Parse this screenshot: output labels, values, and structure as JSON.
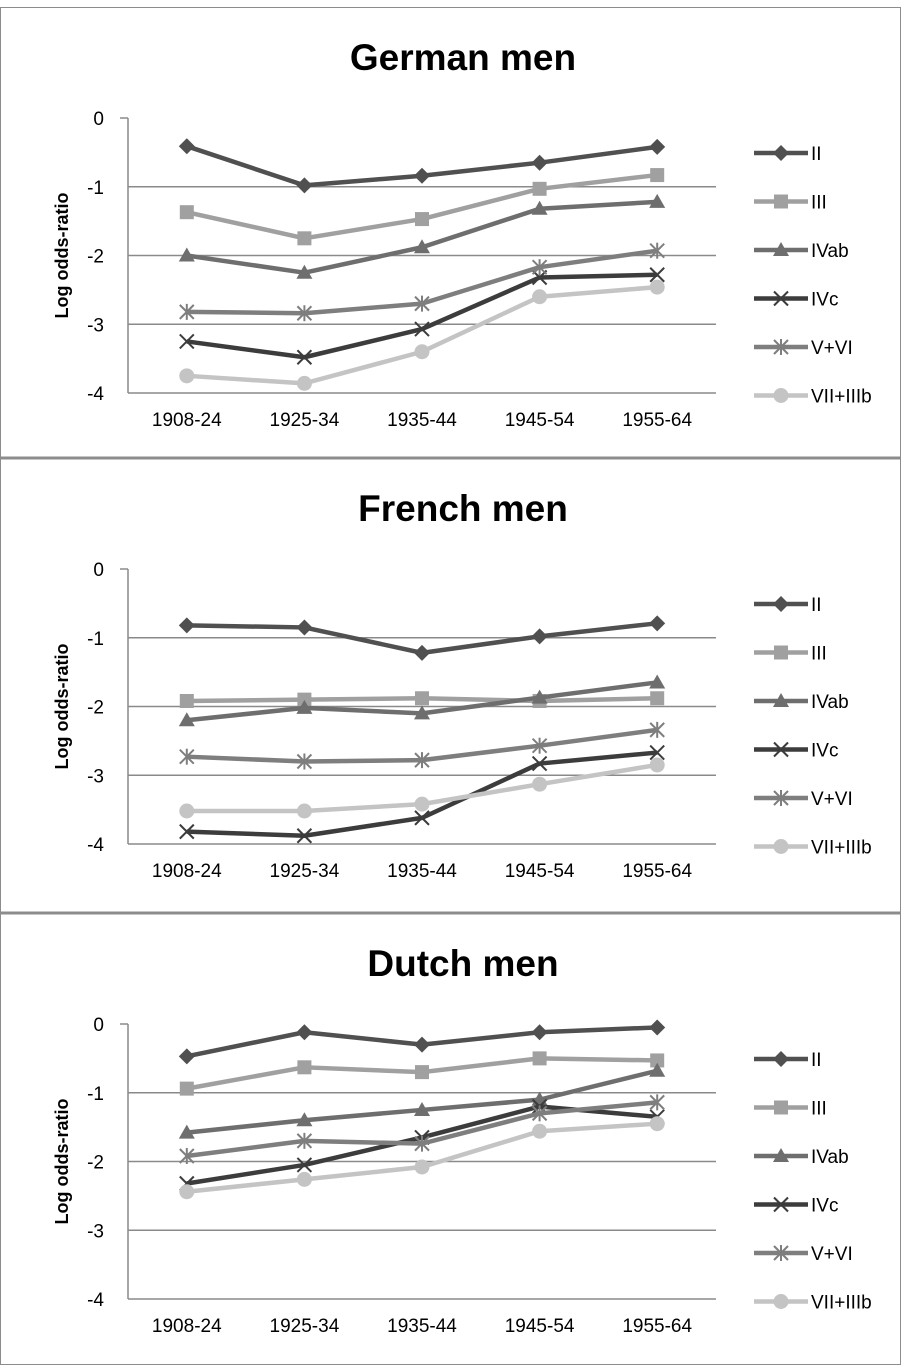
{
  "chart_data": [
    {
      "type": "line",
      "title": "German men",
      "ylabel": "Log odds-ratio",
      "ylim": [
        -4,
        0
      ],
      "yticks": [
        "0",
        "-1",
        "-2",
        "-3",
        "-4"
      ],
      "categories": [
        "1908-24",
        "1925-34",
        "1935-44",
        "1945-54",
        "1955-64"
      ],
      "grid": true,
      "legend": "right",
      "series": [
        {
          "name": "II",
          "values": [
            -0.41,
            -0.98,
            -0.84,
            -0.65,
            -0.42
          ],
          "color": "#505050",
          "marker": "diamond"
        },
        {
          "name": "III",
          "values": [
            -1.37,
            -1.75,
            -1.47,
            -1.03,
            -0.83
          ],
          "color": "#a0a0a0",
          "marker": "square"
        },
        {
          "name": "IVab",
          "values": [
            -2.0,
            -2.25,
            -1.88,
            -1.32,
            -1.22
          ],
          "color": "#6e6e6e",
          "marker": "triangle"
        },
        {
          "name": "IVc",
          "values": [
            -3.25,
            -3.48,
            -3.07,
            -2.32,
            -2.28
          ],
          "color": "#3c3c3c",
          "marker": "x"
        },
        {
          "name": "V+VI",
          "values": [
            -2.82,
            -2.84,
            -2.7,
            -2.17,
            -1.93
          ],
          "color": "#7e7e7e",
          "marker": "star"
        },
        {
          "name": "VII+IIIb",
          "values": [
            -3.75,
            -3.86,
            -3.4,
            -2.6,
            -2.46
          ],
          "color": "#c4c4c4",
          "marker": "circle"
        }
      ]
    },
    {
      "type": "line",
      "title": "French men",
      "ylabel": "Log odds-ratio",
      "ylim": [
        -4,
        0
      ],
      "yticks": [
        "0",
        "-1",
        "-2",
        "-3",
        "-4"
      ],
      "categories": [
        "1908-24",
        "1925-34",
        "1935-44",
        "1945-54",
        "1955-64"
      ],
      "grid": true,
      "legend": "right",
      "series": [
        {
          "name": "II",
          "values": [
            -0.82,
            -0.85,
            -1.22,
            -0.98,
            -0.79
          ],
          "color": "#505050",
          "marker": "diamond"
        },
        {
          "name": "III",
          "values": [
            -1.92,
            -1.9,
            -1.88,
            -1.92,
            -1.88
          ],
          "color": "#a0a0a0",
          "marker": "square"
        },
        {
          "name": "IVab",
          "values": [
            -2.2,
            -2.02,
            -2.1,
            -1.87,
            -1.65
          ],
          "color": "#6e6e6e",
          "marker": "triangle"
        },
        {
          "name": "IVc",
          "values": [
            -3.82,
            -3.88,
            -3.62,
            -2.83,
            -2.67
          ],
          "color": "#3c3c3c",
          "marker": "x"
        },
        {
          "name": "V+VI",
          "values": [
            -2.73,
            -2.8,
            -2.78,
            -2.57,
            -2.34
          ],
          "color": "#7e7e7e",
          "marker": "star"
        },
        {
          "name": "VII+IIIb",
          "values": [
            -3.52,
            -3.52,
            -3.42,
            -3.13,
            -2.85
          ],
          "color": "#c4c4c4",
          "marker": "circle"
        }
      ]
    },
    {
      "type": "line",
      "title": "Dutch men",
      "ylabel": "Log odds-ratio",
      "ylim": [
        -4,
        0
      ],
      "yticks": [
        "0",
        "-1",
        "-2",
        "-3",
        "-4"
      ],
      "categories": [
        "1908-24",
        "1925-34",
        "1935-44",
        "1945-54",
        "1955-64"
      ],
      "grid": true,
      "legend": "right",
      "series": [
        {
          "name": "II",
          "values": [
            -0.47,
            -0.12,
            -0.3,
            -0.12,
            -0.05
          ],
          "color": "#505050",
          "marker": "diamond"
        },
        {
          "name": "III",
          "values": [
            -0.94,
            -0.63,
            -0.7,
            -0.5,
            -0.53
          ],
          "color": "#a0a0a0",
          "marker": "square"
        },
        {
          "name": "IVab",
          "values": [
            -1.58,
            -1.4,
            -1.25,
            -1.1,
            -0.68
          ],
          "color": "#6e6e6e",
          "marker": "triangle"
        },
        {
          "name": "IVc",
          "values": [
            -2.32,
            -2.05,
            -1.65,
            -1.2,
            -1.35
          ],
          "color": "#3c3c3c",
          "marker": "x"
        },
        {
          "name": "V+VI",
          "values": [
            -1.92,
            -1.7,
            -1.74,
            -1.3,
            -1.14
          ],
          "color": "#7e7e7e",
          "marker": "star"
        },
        {
          "name": "VII+IIIb",
          "values": [
            -2.44,
            -2.26,
            -2.08,
            -1.56,
            -1.45
          ],
          "color": "#c4c4c4",
          "marker": "circle"
        }
      ]
    }
  ]
}
